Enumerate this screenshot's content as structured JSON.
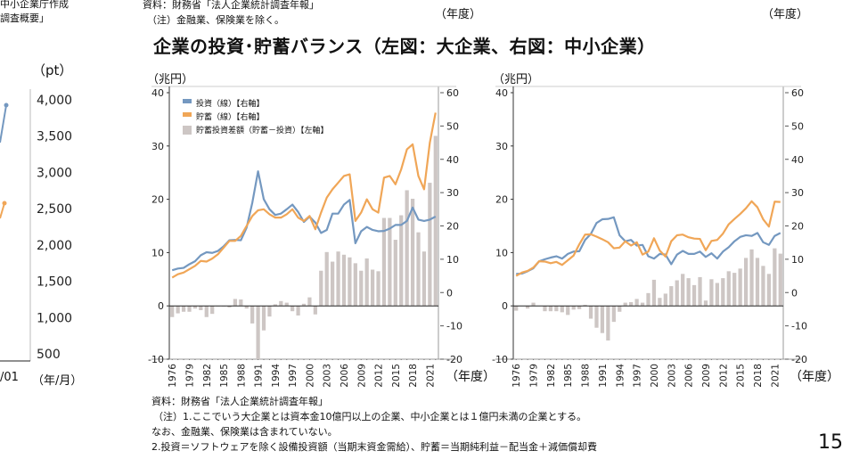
{
  "header": {
    "left_partial_source_1": "中小企業庁作成",
    "left_partial_source_2": "調査概要」",
    "source": "資料：財務省「法人企業統計調査年報」",
    "note": "（注）金融業、保険業を除く。",
    "unit_year_1": "（年度）",
    "unit_year_2": "（年度）"
  },
  "title": "企業の投資･貯蓄バランス（左図：大企業、右図：中小企業）",
  "left_partial_chart": {
    "unit": "（pt）",
    "y_ticks": [
      "4,000",
      "3,500",
      "3,000",
      "2,500",
      "2,000",
      "1,500",
      "1,000",
      "500"
    ],
    "x_tick_partial": "/01",
    "x_unit": "（年/月）"
  },
  "chart_data": [
    {
      "type": "bar+line",
      "title": "大企業",
      "ylabel": "（兆円）",
      "xlabel": "（年度）",
      "ylim_left": [
        -10,
        40
      ],
      "ylim_right": [
        -20,
        60
      ],
      "left_ticks": [
        40,
        30,
        20,
        10,
        0,
        -10
      ],
      "right_ticks": [
        60,
        50,
        40,
        30,
        20,
        10,
        0,
        -10,
        -20
      ],
      "x": [
        1976,
        1977,
        1978,
        1979,
        1980,
        1981,
        1982,
        1983,
        1984,
        1985,
        1986,
        1987,
        1988,
        1989,
        1990,
        1991,
        1992,
        1993,
        1994,
        1995,
        1996,
        1997,
        1998,
        1999,
        2000,
        2001,
        2002,
        2003,
        2004,
        2005,
        2006,
        2007,
        2008,
        2009,
        2010,
        2011,
        2012,
        2013,
        2014,
        2015,
        2016,
        2017,
        2018,
        2019,
        2020,
        2021,
        2022
      ],
      "x_tick_labels": [
        "1976",
        "1979",
        "1982",
        "1985",
        "1988",
        "1991",
        "1994",
        "1997",
        "2000",
        "2003",
        "2006",
        "2009",
        "2012",
        "2015",
        "2018",
        "2021"
      ],
      "legend": "top-left",
      "series": [
        {
          "name": "投資（線）【右軸】",
          "axis": "right",
          "kind": "line",
          "color": "#7498c0",
          "values": [
            6.7,
            7.2,
            7.4,
            8.5,
            9.4,
            11.2,
            12.1,
            11.9,
            12.5,
            13.9,
            15.7,
            15.8,
            15.7,
            19.5,
            27,
            36.4,
            28,
            25,
            23.3,
            23.7,
            25,
            26.4,
            24.2,
            21.2,
            22.8,
            21,
            17.9,
            18.8,
            23.7,
            23.7,
            26.4,
            27.8,
            14.8,
            18.4,
            19.7,
            18.8,
            18.4,
            18.5,
            19.2,
            20.3,
            20.3,
            21.5,
            25.5,
            21.9,
            21.5,
            21.9,
            22.8
          ]
        },
        {
          "name": "貯蓄（線）【右軸】",
          "axis": "right",
          "kind": "line",
          "color": "#f0a657",
          "values": [
            4.5,
            5.5,
            6,
            7,
            8,
            9.5,
            9.3,
            10.2,
            11.5,
            13.5,
            15.5,
            15.5,
            17,
            20,
            23,
            24.7,
            25,
            23.5,
            22.5,
            22.5,
            23.5,
            25,
            22.5,
            21.5,
            23,
            19,
            24,
            28.5,
            31,
            33,
            35,
            35.5,
            21.5,
            24,
            28,
            25,
            24,
            34.5,
            35,
            32.5,
            37,
            43,
            44.5,
            35,
            31,
            45,
            54
          ]
        },
        {
          "name": "貯蓄投資差額（貯蓄－投資）【左軸】",
          "axis": "left",
          "kind": "bar",
          "color": "#cdc6c4",
          "values": [
            -2.1,
            -1.4,
            -1.1,
            -1.1,
            -0.5,
            -0.8,
            -2.1,
            -1.5,
            -0.1,
            -0.1,
            -0.3,
            1.3,
            1.2,
            -0.5,
            -3.3,
            -10.5,
            -4.6,
            -2.0,
            0.3,
            0.9,
            0.6,
            -1.0,
            -1.8,
            0.4,
            1.6,
            -1.6,
            6.6,
            10.1,
            8.3,
            10.2,
            9.6,
            9.1,
            8.0,
            6.6,
            8.9,
            6.8,
            6.5,
            16.5,
            16.5,
            12.4,
            17,
            21.7,
            20.1,
            13.8,
            10.2,
            23.1,
            31.9
          ]
        }
      ]
    },
    {
      "type": "bar+line",
      "title": "中小企業",
      "ylabel": "（兆円）",
      "xlabel": "（年度）",
      "ylim_left": [
        -10,
        40
      ],
      "ylim_right": [
        -20,
        60
      ],
      "left_ticks": [
        40,
        30,
        20,
        10,
        0,
        -10
      ],
      "right_ticks": [
        60,
        50,
        40,
        30,
        20,
        10,
        0,
        -10,
        -20
      ],
      "x": [
        1976,
        1977,
        1978,
        1979,
        1980,
        1981,
        1982,
        1983,
        1984,
        1985,
        1986,
        1987,
        1988,
        1989,
        1990,
        1991,
        1992,
        1993,
        1994,
        1995,
        1996,
        1997,
        1998,
        1999,
        2000,
        2001,
        2002,
        2003,
        2004,
        2005,
        2006,
        2007,
        2008,
        2009,
        2010,
        2011,
        2012,
        2013,
        2014,
        2015,
        2016,
        2017,
        2018,
        2019,
        2020,
        2021,
        2022
      ],
      "x_tick_labels": [
        "1976",
        "1979",
        "1982",
        "1985",
        "1988",
        "1991",
        "1994",
        "1997",
        "2000",
        "2003",
        "2006",
        "2009",
        "2012",
        "2015",
        "2018",
        "2021"
      ],
      "series": [
        {
          "name": "投資",
          "axis": "right",
          "kind": "line",
          "color": "#7498c0",
          "values": [
            5.6,
            5.7,
            6.4,
            7.3,
            9.4,
            10,
            10.5,
            10.9,
            10.2,
            11.6,
            12.3,
            12.4,
            15.8,
            17.6,
            20.9,
            22,
            22.1,
            22.6,
            17.2,
            15.4,
            15.8,
            14.1,
            14.3,
            10.9,
            10.2,
            11.6,
            11.4,
            8.5,
            11.4,
            12.5,
            11.6,
            11.6,
            12.3,
            10.7,
            11.8,
            10.2,
            12.3,
            13.6,
            15.4,
            16.7,
            17.2,
            17,
            17.9,
            15.1,
            14.3,
            17,
            17.9
          ]
        },
        {
          "name": "貯蓄",
          "axis": "right",
          "kind": "line",
          "color": "#f0a657",
          "values": [
            5.0,
            6,
            6.5,
            7.5,
            9.4,
            9.3,
            8.8,
            9.2,
            8.3,
            9.7,
            11.1,
            14.5,
            17.4,
            17.5,
            16.8,
            16,
            15.1,
            13.3,
            13.5,
            15.4,
            14.1,
            15.1,
            11.4,
            12.3,
            16.3,
            12.6,
            10.8,
            15.4,
            17.2,
            17.4,
            16.6,
            16.2,
            16.1,
            12.7,
            15.5,
            15.8,
            17.7,
            20.5,
            22.1,
            23.6,
            25.3,
            27.4,
            25.6,
            22,
            19.8,
            27.3,
            27.2
          ]
        },
        {
          "name": "貯蓄投資差額",
          "axis": "left",
          "kind": "bar",
          "color": "#cdc6c4",
          "values": [
            -0.9,
            0,
            -0.5,
            0.6,
            0,
            -1.0,
            -1.0,
            -1.0,
            -1.2,
            -1.7,
            -0.7,
            -0.6,
            0.2,
            -2.4,
            -4.1,
            -5.1,
            -6.5,
            -3.0,
            -1.1,
            0.6,
            0.7,
            1.3,
            0.6,
            2.4,
            4.9,
            1.5,
            2.3,
            3.7,
            4.8,
            6.0,
            5.2,
            3.9,
            5.4,
            1.0,
            5.0,
            4.3,
            5.2,
            6.5,
            6.2,
            7.0,
            9.0,
            10.6,
            9.0,
            7.5,
            6.0,
            10.8,
            9.8
          ]
        }
      ]
    }
  ],
  "footer": {
    "source": "資料：財務省「法人企業統計調査年報」",
    "note1": "（注）1.ここでいう大企業とは資本金10億円以上の企業、中小企業とは１億円未満の企業とする。",
    "note1b": "なお、金融業、保険業は含まれていない。",
    "note2": "2.投資＝ソフトウェアを除く設備投資額（当期末資金需給）、貯蓄＝当期純利益－配当金＋減価償却費",
    "page_number": "15"
  }
}
